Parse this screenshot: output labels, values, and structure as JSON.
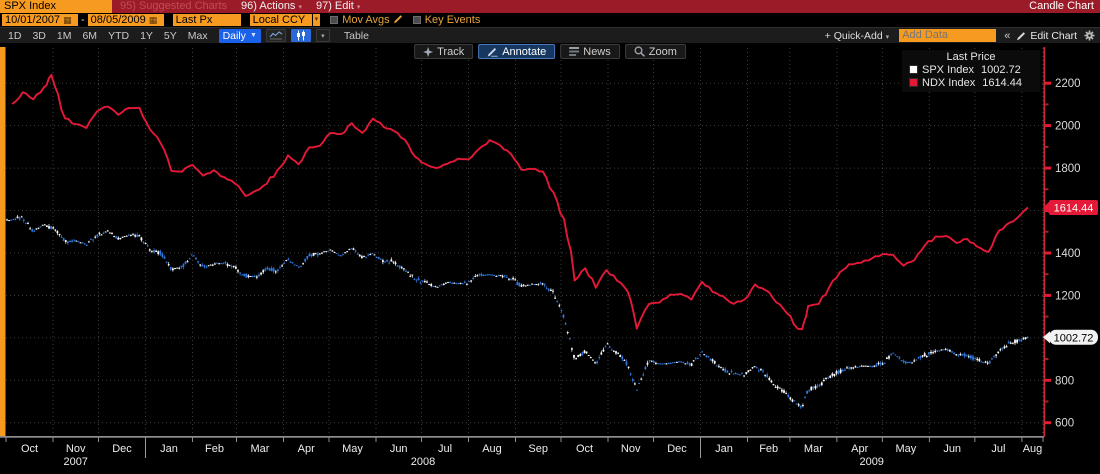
{
  "titlebar": {
    "ticker": "SPX Index",
    "suggested": "95) Suggested Charts",
    "actions": "96) Actions",
    "edit": "97) Edit",
    "chart_type": "Candle Chart"
  },
  "settings_bar": {
    "date_from": "10/01/2007",
    "separator": "-",
    "date_to": "08/05/2009",
    "field": "Last Px",
    "currency": "Local CCY",
    "mov_avgs": "Mov Avgs",
    "key_events": "Key Events",
    "calendar_icon": "▦",
    "dropdown_icon": "▾"
  },
  "range_bar": {
    "ranges": [
      "1D",
      "3D",
      "1M",
      "6M",
      "YTD",
      "1Y",
      "5Y",
      "Max"
    ],
    "period": "Daily",
    "period_caret": "▼",
    "table": "Table",
    "quick_add": "+ Quick-Add",
    "quick_add_caret": "▾",
    "add_data_placeholder": "Add Data",
    "collapse": "«",
    "edit_chart": "Edit Chart"
  },
  "chart_toolbar": {
    "track": "Track",
    "annotate": "Annotate",
    "news": "News",
    "zoom": "Zoom"
  },
  "legend": {
    "title": "Last Price",
    "series": [
      {
        "label": "SPX Index",
        "value": "1002.72",
        "color": "#FFFFFF"
      },
      {
        "label": "NDX Index",
        "value": "1614.44",
        "color": "#E31937"
      }
    ]
  },
  "badges": {
    "ndx": "1614.44",
    "spx": "1002.72"
  },
  "colors": {
    "accent_orange": "#F79A20",
    "titlebar_red": "#9B1B28",
    "ndx_line": "#E31937",
    "candle_up": "#FFFFFF",
    "candle_down": "#2E78E0",
    "grid": "#3E3E3E",
    "y_axis": "#CE2B38",
    "x_axis": "#8E8E8E",
    "tick_label": "#D9D9D9",
    "month_label": "#EDEDED",
    "blue_button": "#1B62E8"
  },
  "chart_data": {
    "type": "line",
    "title": "SPX Index and NDX Index, Last Price, 10/01/2007 - 08/05/2009, Daily",
    "x_start": "2007-10-01",
    "x_end": "2009-08-14",
    "month_labels": [
      "Oct",
      "Nov",
      "Dec",
      "Jan",
      "Feb",
      "Mar",
      "Apr",
      "May",
      "Jun",
      "Jul",
      "Aug",
      "Sep",
      "Oct",
      "Nov",
      "Dec",
      "Jan",
      "Feb",
      "Mar",
      "Apr",
      "May",
      "Jun",
      "Jul",
      "Aug"
    ],
    "year_labels": [
      "2007",
      "2008",
      "2009"
    ],
    "y_ticks": [
      600,
      800,
      1000,
      1200,
      1400,
      1600,
      1800,
      2000,
      2200
    ],
    "y_range_visible": [
      533,
      2365
    ],
    "legend_position": "top-right",
    "grid": "dotted",
    "series": [
      {
        "name": "SPX Index",
        "style": "candle",
        "last_price": 1002.72,
        "points": [
          [
            "2007-10-05",
            1557
          ],
          [
            "2007-10-09",
            1565
          ],
          [
            "2007-10-12",
            1562
          ],
          [
            "2007-10-19",
            1501
          ],
          [
            "2007-10-26",
            1535
          ],
          [
            "2007-11-02",
            1509
          ],
          [
            "2007-11-09",
            1454
          ],
          [
            "2007-11-16",
            1459
          ],
          [
            "2007-11-23",
            1440
          ],
          [
            "2007-11-30",
            1481
          ],
          [
            "2007-12-07",
            1504
          ],
          [
            "2007-12-14",
            1468
          ],
          [
            "2007-12-21",
            1484
          ],
          [
            "2007-12-28",
            1478
          ],
          [
            "2008-01-04",
            1412
          ],
          [
            "2008-01-11",
            1401
          ],
          [
            "2008-01-18",
            1325
          ],
          [
            "2008-01-25",
            1331
          ],
          [
            "2008-02-01",
            1395
          ],
          [
            "2008-02-08",
            1331
          ],
          [
            "2008-02-15",
            1350
          ],
          [
            "2008-02-22",
            1353
          ],
          [
            "2008-02-29",
            1330
          ],
          [
            "2008-03-07",
            1293
          ],
          [
            "2008-03-14",
            1288
          ],
          [
            "2008-03-21",
            1329
          ],
          [
            "2008-03-28",
            1316
          ],
          [
            "2008-04-04",
            1370
          ],
          [
            "2008-04-11",
            1332
          ],
          [
            "2008-04-18",
            1390
          ],
          [
            "2008-04-25",
            1398
          ],
          [
            "2008-05-02",
            1414
          ],
          [
            "2008-05-09",
            1388
          ],
          [
            "2008-05-16",
            1425
          ],
          [
            "2008-05-23",
            1376
          ],
          [
            "2008-05-30",
            1400
          ],
          [
            "2008-06-06",
            1361
          ],
          [
            "2008-06-13",
            1360
          ],
          [
            "2008-06-20",
            1318
          ],
          [
            "2008-06-27",
            1278
          ],
          [
            "2008-07-03",
            1263
          ],
          [
            "2008-07-11",
            1239
          ],
          [
            "2008-07-18",
            1260
          ],
          [
            "2008-07-25",
            1258
          ],
          [
            "2008-08-01",
            1260
          ],
          [
            "2008-08-08",
            1296
          ],
          [
            "2008-08-15",
            1298
          ],
          [
            "2008-08-22",
            1292
          ],
          [
            "2008-08-29",
            1283
          ],
          [
            "2008-09-05",
            1242
          ],
          [
            "2008-09-12",
            1252
          ],
          [
            "2008-09-19",
            1255
          ],
          [
            "2008-09-26",
            1213
          ],
          [
            "2008-10-03",
            1099
          ],
          [
            "2008-10-10",
            899
          ],
          [
            "2008-10-17",
            940
          ],
          [
            "2008-10-24",
            877
          ],
          [
            "2008-10-31",
            969
          ],
          [
            "2008-11-07",
            931
          ],
          [
            "2008-11-14",
            873
          ],
          [
            "2008-11-20",
            752
          ],
          [
            "2008-11-28",
            896
          ],
          [
            "2008-12-05",
            876
          ],
          [
            "2008-12-12",
            880
          ],
          [
            "2008-12-19",
            888
          ],
          [
            "2008-12-26",
            873
          ],
          [
            "2009-01-02",
            932
          ],
          [
            "2009-01-09",
            890
          ],
          [
            "2009-01-16",
            850
          ],
          [
            "2009-01-23",
            832
          ],
          [
            "2009-01-30",
            826
          ],
          [
            "2009-02-06",
            869
          ],
          [
            "2009-02-13",
            827
          ],
          [
            "2009-02-20",
            770
          ],
          [
            "2009-02-27",
            735
          ],
          [
            "2009-03-06",
            683
          ],
          [
            "2009-03-09",
            677
          ],
          [
            "2009-03-13",
            757
          ],
          [
            "2009-03-20",
            769
          ],
          [
            "2009-03-27",
            816
          ],
          [
            "2009-04-03",
            842
          ],
          [
            "2009-04-09",
            857
          ],
          [
            "2009-04-17",
            869
          ],
          [
            "2009-04-24",
            866
          ],
          [
            "2009-05-01",
            878
          ],
          [
            "2009-05-08",
            929
          ],
          [
            "2009-05-15",
            883
          ],
          [
            "2009-05-22",
            887
          ],
          [
            "2009-05-29",
            919
          ],
          [
            "2009-06-05",
            940
          ],
          [
            "2009-06-12",
            946
          ],
          [
            "2009-06-19",
            921
          ],
          [
            "2009-06-26",
            919
          ],
          [
            "2009-07-02",
            896
          ],
          [
            "2009-07-10",
            879
          ],
          [
            "2009-07-17",
            940
          ],
          [
            "2009-07-24",
            979
          ],
          [
            "2009-07-31",
            987
          ],
          [
            "2009-08-05",
            1002.72
          ]
        ]
      },
      {
        "name": "NDX Index",
        "style": "line",
        "last_price": 1614.44,
        "points": [
          [
            "2007-10-05",
            2102
          ],
          [
            "2007-10-12",
            2157
          ],
          [
            "2007-10-19",
            2124
          ],
          [
            "2007-10-26",
            2180
          ],
          [
            "2007-10-31",
            2239
          ],
          [
            "2007-11-02",
            2190
          ],
          [
            "2007-11-09",
            2034
          ],
          [
            "2007-11-16",
            2007
          ],
          [
            "2007-11-23",
            1989
          ],
          [
            "2007-11-30",
            2067
          ],
          [
            "2007-12-07",
            2090
          ],
          [
            "2007-12-14",
            2051
          ],
          [
            "2007-12-21",
            2083
          ],
          [
            "2007-12-28",
            2084
          ],
          [
            "2008-01-04",
            1982
          ],
          [
            "2008-01-11",
            1917
          ],
          [
            "2008-01-18",
            1787
          ],
          [
            "2008-01-25",
            1783
          ],
          [
            "2008-02-01",
            1815
          ],
          [
            "2008-02-08",
            1764
          ],
          [
            "2008-02-15",
            1790
          ],
          [
            "2008-02-22",
            1757
          ],
          [
            "2008-02-29",
            1727
          ],
          [
            "2008-03-07",
            1668
          ],
          [
            "2008-03-14",
            1694
          ],
          [
            "2008-03-21",
            1726
          ],
          [
            "2008-03-28",
            1790
          ],
          [
            "2008-04-04",
            1860
          ],
          [
            "2008-04-11",
            1818
          ],
          [
            "2008-04-18",
            1898
          ],
          [
            "2008-04-25",
            1905
          ],
          [
            "2008-05-02",
            1965
          ],
          [
            "2008-05-09",
            1960
          ],
          [
            "2008-05-16",
            2012
          ],
          [
            "2008-05-23",
            1966
          ],
          [
            "2008-05-30",
            2033
          ],
          [
            "2008-06-06",
            1994
          ],
          [
            "2008-06-13",
            1974
          ],
          [
            "2008-06-20",
            1934
          ],
          [
            "2008-06-27",
            1852
          ],
          [
            "2008-07-03",
            1822
          ],
          [
            "2008-07-11",
            1800
          ],
          [
            "2008-07-18",
            1820
          ],
          [
            "2008-07-25",
            1844
          ],
          [
            "2008-08-01",
            1841
          ],
          [
            "2008-08-08",
            1891
          ],
          [
            "2008-08-15",
            1932
          ],
          [
            "2008-08-22",
            1907
          ],
          [
            "2008-08-29",
            1867
          ],
          [
            "2008-09-05",
            1792
          ],
          [
            "2008-09-12",
            1796
          ],
          [
            "2008-09-19",
            1784
          ],
          [
            "2008-09-26",
            1686
          ],
          [
            "2008-10-03",
            1561
          ],
          [
            "2008-10-10",
            1270
          ],
          [
            "2008-10-17",
            1328
          ],
          [
            "2008-10-24",
            1236
          ],
          [
            "2008-10-31",
            1319
          ],
          [
            "2008-11-07",
            1269
          ],
          [
            "2008-11-14",
            1218
          ],
          [
            "2008-11-20",
            1043
          ],
          [
            "2008-11-28",
            1159
          ],
          [
            "2008-12-05",
            1166
          ],
          [
            "2008-12-12",
            1204
          ],
          [
            "2008-12-19",
            1207
          ],
          [
            "2008-12-26",
            1180
          ],
          [
            "2009-01-02",
            1264
          ],
          [
            "2009-01-09",
            1216
          ],
          [
            "2009-01-16",
            1196
          ],
          [
            "2009-01-23",
            1160
          ],
          [
            "2009-01-30",
            1180
          ],
          [
            "2009-02-06",
            1252
          ],
          [
            "2009-02-13",
            1224
          ],
          [
            "2009-02-20",
            1167
          ],
          [
            "2009-02-27",
            1116
          ],
          [
            "2009-03-06",
            1044
          ],
          [
            "2009-03-09",
            1040
          ],
          [
            "2009-03-13",
            1150
          ],
          [
            "2009-03-20",
            1160
          ],
          [
            "2009-03-27",
            1240
          ],
          [
            "2009-04-03",
            1310
          ],
          [
            "2009-04-09",
            1347
          ],
          [
            "2009-04-17",
            1354
          ],
          [
            "2009-04-24",
            1374
          ],
          [
            "2009-05-01",
            1394
          ],
          [
            "2009-05-08",
            1392
          ],
          [
            "2009-05-15",
            1340
          ],
          [
            "2009-05-22",
            1366
          ],
          [
            "2009-05-29",
            1436
          ],
          [
            "2009-06-05",
            1477
          ],
          [
            "2009-06-12",
            1480
          ],
          [
            "2009-06-19",
            1447
          ],
          [
            "2009-06-26",
            1466
          ],
          [
            "2009-07-02",
            1432
          ],
          [
            "2009-07-10",
            1405
          ],
          [
            "2009-07-17",
            1506
          ],
          [
            "2009-07-24",
            1543
          ],
          [
            "2009-07-31",
            1580
          ],
          [
            "2009-08-05",
            1614.44
          ]
        ]
      }
    ]
  }
}
